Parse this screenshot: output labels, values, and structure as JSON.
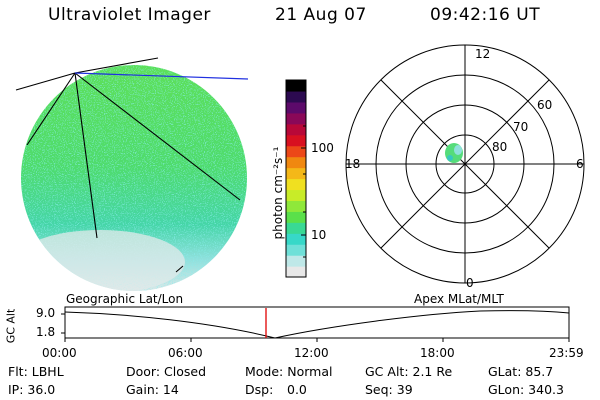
{
  "header": {
    "title": "Ultraviolet Imager",
    "date": "21 Aug 07",
    "time": "09:42:16 UT"
  },
  "colorbar": {
    "unit_label": "photon cm⁻²s⁻¹",
    "tick_100": "100",
    "tick_10": "10",
    "colors": [
      "#e8e8e8",
      "#bfe8e8",
      "#6fe0d8",
      "#37d8c8",
      "#39d994",
      "#5ae04a",
      "#8fe83a",
      "#c8ec28",
      "#f0e020",
      "#f4b818",
      "#f08810",
      "#ec4818",
      "#d81020",
      "#b80838",
      "#8a0858",
      "#5c0a6a",
      "#2c0a50",
      "#000000"
    ]
  },
  "polar": {
    "mlt_labels": {
      "top": "12",
      "left": "18",
      "right": "6",
      "bottom": "0"
    },
    "lat_labels": [
      "60",
      "70",
      "80"
    ]
  },
  "timeline": {
    "left_label": "Geographic Lat/Lon",
    "right_label": "Apex MLat/MLT",
    "y_axis_label": "GC Alt",
    "y_top": "9.0",
    "y_bottom": "1.8",
    "x_ticks": [
      "00:00",
      "06:00",
      "12:00",
      "18:00",
      "23:59"
    ],
    "current_color": "#e00000"
  },
  "info": {
    "flt": "Flt: LBHL",
    "ip": "IP: 36.0",
    "door": "Door: Closed",
    "gain": "Gain: 14",
    "mode": "Mode: Normal",
    "dsp_label": "Dsp:",
    "dsp_value": "0.0",
    "gc_alt": "GC Alt: 2.1 Re",
    "seq": "Seq: 39",
    "glat": "GLat: 85.7",
    "glon": "GLon: 340.3"
  }
}
